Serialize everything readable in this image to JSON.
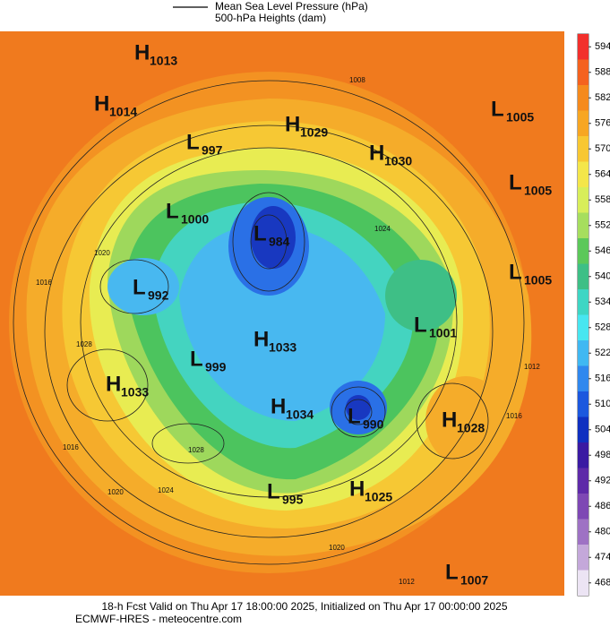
{
  "legend": {
    "line1": "Mean Sea Level Pressure (hPa)",
    "line2": "500-hPa Heights (dam)"
  },
  "colorbar": {
    "ticks": [
      594,
      588,
      582,
      576,
      570,
      564,
      558,
      552,
      546,
      540,
      534,
      528,
      522,
      516,
      510,
      504,
      498,
      492,
      486,
      480,
      474,
      468
    ],
    "colors": [
      "#f2302c",
      "#f4621f",
      "#f58a1d",
      "#f7a623",
      "#f8c732",
      "#f4e64a",
      "#d8ee5a",
      "#a6de5e",
      "#5cc85a",
      "#3ebf86",
      "#3ed6c4",
      "#48e6f0",
      "#40b8f2",
      "#3088ee",
      "#1c58de",
      "#1030c0",
      "#3a1aa2",
      "#5e2aa8",
      "#7e48b4",
      "#9e72c4",
      "#c4a8da",
      "#ece4f4"
    ]
  },
  "centers": [
    {
      "symbol": "H",
      "pressure": 1013
    },
    {
      "symbol": "H",
      "pressure": 1014
    },
    {
      "symbol": "L",
      "pressure": 997
    },
    {
      "symbol": "H",
      "pressure": 1029
    },
    {
      "symbol": "H",
      "pressure": 1030
    },
    {
      "symbol": "L",
      "pressure": 1005
    },
    {
      "symbol": "L",
      "pressure": 1005
    },
    {
      "symbol": "L",
      "pressure": 1005
    },
    {
      "symbol": "L",
      "pressure": 1000
    },
    {
      "symbol": "L",
      "pressure": 984
    },
    {
      "symbol": "L",
      "pressure": 992
    },
    {
      "symbol": "L",
      "pressure": 1001
    },
    {
      "symbol": "H",
      "pressure": 1033
    },
    {
      "symbol": "L",
      "pressure": 999
    },
    {
      "symbol": "H",
      "pressure": 1033
    },
    {
      "symbol": "H",
      "pressure": 1034
    },
    {
      "symbol": "L",
      "pressure": 990
    },
    {
      "symbol": "H",
      "pressure": 1028
    },
    {
      "symbol": "L",
      "pressure": 995
    },
    {
      "symbol": "H",
      "pressure": 1025
    },
    {
      "symbol": "L",
      "pressure": 1007
    }
  ],
  "isobar_labels": [
    1008,
    1024,
    1020,
    1016,
    1012,
    1028,
    1016,
    1020,
    1024,
    1028,
    1020,
    1016,
    1012
  ],
  "footer": {
    "line1": "18-h Fcst Valid on Thu Apr 17 18:00:00 2025, Initialized on Thu Apr 17 00:00:00 2025",
    "line2": "ECMWF-HRES - meteocentre.com"
  }
}
